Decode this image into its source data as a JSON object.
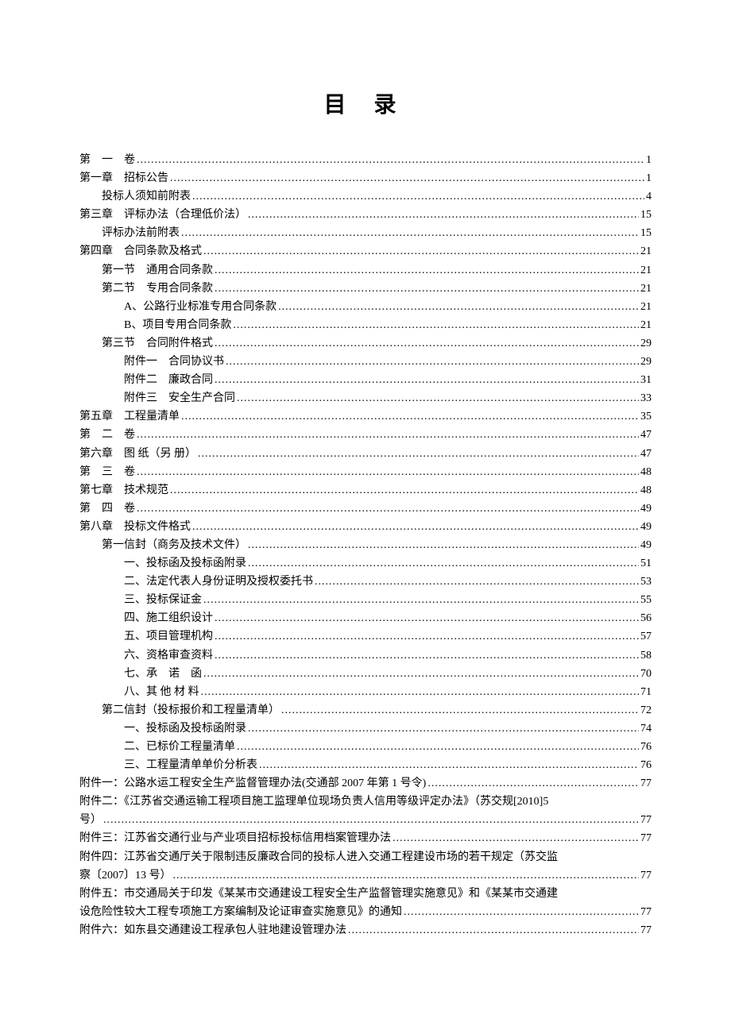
{
  "title": "目 录",
  "entries": [
    {
      "indent": 0,
      "label": "第　一　卷",
      "page": "1"
    },
    {
      "indent": 0,
      "label": "第一章　招标公告",
      "page": "1"
    },
    {
      "indent": 1,
      "label": "投标人须知前附表",
      "page": "4"
    },
    {
      "indent": 0,
      "label": "第三章　评标办法（合理低价法）",
      "page": "15"
    },
    {
      "indent": 1,
      "label": "评标办法前附表",
      "page": "15"
    },
    {
      "indent": 0,
      "label": "第四章　合同条款及格式",
      "page": "21"
    },
    {
      "indent": 1,
      "label": "第一节　通用合同条款",
      "page": "21"
    },
    {
      "indent": 1,
      "label": "第二节　专用合同条款",
      "page": "21"
    },
    {
      "indent": 2,
      "label": "A、公路行业标准专用合同条款",
      "page": "21"
    },
    {
      "indent": 2,
      "label": "B、项目专用合同条款",
      "page": "21"
    },
    {
      "indent": 1,
      "label": "第三节　合同附件格式",
      "page": "29"
    },
    {
      "indent": 2,
      "label": "附件一　合同协议书",
      "page": "29"
    },
    {
      "indent": 2,
      "label": "附件二　廉政合同",
      "page": "31"
    },
    {
      "indent": 2,
      "label": "附件三　安全生产合同",
      "page": "33"
    },
    {
      "indent": 0,
      "label": "第五章　工程量清单",
      "page": "35"
    },
    {
      "indent": 0,
      "label": "第　二　卷",
      "page": "47"
    },
    {
      "indent": 0,
      "label": "第六章　图 纸（另 册）",
      "page": "47"
    },
    {
      "indent": 0,
      "label": "第　三　卷",
      "page": "48"
    },
    {
      "indent": 0,
      "label": "第七章　技术规范",
      "page": "48"
    },
    {
      "indent": 0,
      "label": "第　四　卷",
      "page": "49"
    },
    {
      "indent": 0,
      "label": "第八章　投标文件格式",
      "page": "49"
    },
    {
      "indent": 1,
      "label": "第一信封（商务及技术文件）",
      "page": "49"
    },
    {
      "indent": 2,
      "label": "一、投标函及投标函附录",
      "page": "51"
    },
    {
      "indent": 2,
      "label": "二、法定代表人身份证明及授权委托书",
      "page": "53"
    },
    {
      "indent": 2,
      "label": "三、投标保证金",
      "page": "55"
    },
    {
      "indent": 2,
      "label": "四、施工组织设计",
      "page": "56"
    },
    {
      "indent": 2,
      "label": "五、项目管理机构",
      "page": "57"
    },
    {
      "indent": 2,
      "label": "六、资格审查资料",
      "page": "58"
    },
    {
      "indent": 2,
      "label": "七、承　诺　函",
      "page": "70"
    },
    {
      "indent": 2,
      "label": "八、其 他 材 料",
      "page": "71"
    },
    {
      "indent": 1,
      "label": "第二信封（投标报价和工程量清单）",
      "page": "72"
    },
    {
      "indent": 2,
      "label": "一、投标函及投标函附录",
      "page": "74"
    },
    {
      "indent": 2,
      "label": "二、已标价工程量清单",
      "page": "76"
    },
    {
      "indent": 2,
      "label": "三、工程量清单单价分析表",
      "page": "76"
    },
    {
      "indent": 0,
      "label": "附件一：公路水运工程安全生产监督管理办法(交通部 2007 年第 1 号令)",
      "page": "77"
    }
  ],
  "wrap_entries": [
    {
      "first_line": "附件二：《江苏省交通运输工程项目施工监理单位现场负责人信用等级评定办法》（苏交规[2010]5",
      "cont_label": "号）",
      "page": "77"
    }
  ],
  "entries2": [
    {
      "indent": 0,
      "label": "附件三：江苏省交通行业与产业项目招标投标信用档案管理办法",
      "page": "77"
    }
  ],
  "wrap_entries2": [
    {
      "first_line": "附件四：江苏省交通厅关于限制违反廉政合同的投标人进入交通工程建设市场的若干规定（苏交监",
      "cont_label": "察〔2007〕13 号）",
      "page": "77"
    },
    {
      "first_line": "附件五：市交通局关于印发《某某市交通建设工程安全生产监督管理实施意见》和《某某市交通建",
      "cont_label": "设危险性较大工程专项施工方案编制及论证审查实施意见》的通知",
      "page": "77"
    }
  ],
  "entries3": [
    {
      "indent": 0,
      "label": "附件六：如东县交通建设工程承包人驻地建设管理办法",
      "page": "77"
    }
  ]
}
